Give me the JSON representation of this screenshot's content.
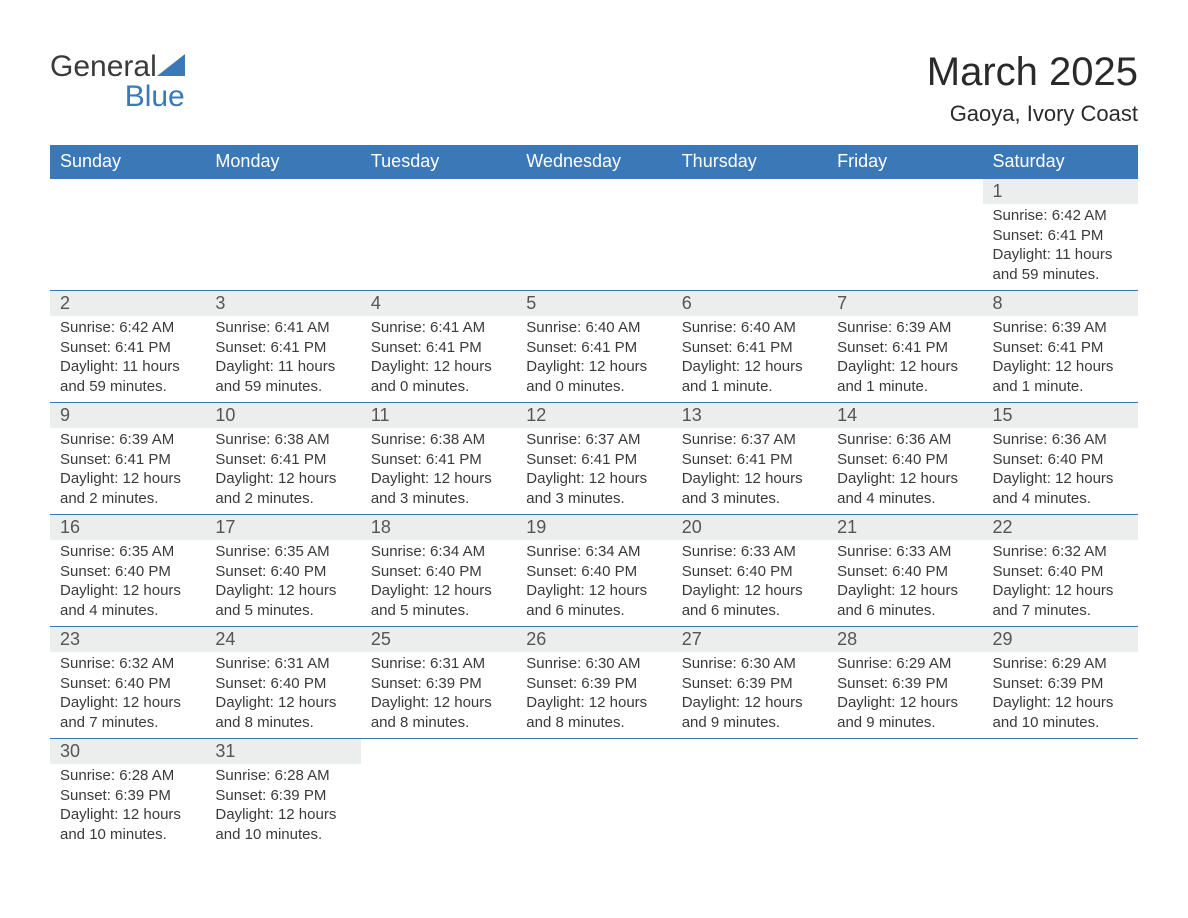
{
  "logo": {
    "text_general": "General",
    "text_blue": "Blue",
    "shape_color": "#3a78b8"
  },
  "title": "March 2025",
  "location": "Gaoya, Ivory Coast",
  "colors": {
    "header_bg": "#3a78b8",
    "header_text": "#ffffff",
    "daynum_bg": "#eceeee",
    "text": "#3a3a3a",
    "row_border": "#3a78b8",
    "page_bg": "#ffffff"
  },
  "day_headers": [
    "Sunday",
    "Monday",
    "Tuesday",
    "Wednesday",
    "Thursday",
    "Friday",
    "Saturday"
  ],
  "weeks": [
    [
      {
        "empty": true
      },
      {
        "empty": true
      },
      {
        "empty": true
      },
      {
        "empty": true
      },
      {
        "empty": true
      },
      {
        "empty": true
      },
      {
        "day": "1",
        "sunrise": "Sunrise: 6:42 AM",
        "sunset": "Sunset: 6:41 PM",
        "daylight": "Daylight: 11 hours and 59 minutes."
      }
    ],
    [
      {
        "day": "2",
        "sunrise": "Sunrise: 6:42 AM",
        "sunset": "Sunset: 6:41 PM",
        "daylight": "Daylight: 11 hours and 59 minutes."
      },
      {
        "day": "3",
        "sunrise": "Sunrise: 6:41 AM",
        "sunset": "Sunset: 6:41 PM",
        "daylight": "Daylight: 11 hours and 59 minutes."
      },
      {
        "day": "4",
        "sunrise": "Sunrise: 6:41 AM",
        "sunset": "Sunset: 6:41 PM",
        "daylight": "Daylight: 12 hours and 0 minutes."
      },
      {
        "day": "5",
        "sunrise": "Sunrise: 6:40 AM",
        "sunset": "Sunset: 6:41 PM",
        "daylight": "Daylight: 12 hours and 0 minutes."
      },
      {
        "day": "6",
        "sunrise": "Sunrise: 6:40 AM",
        "sunset": "Sunset: 6:41 PM",
        "daylight": "Daylight: 12 hours and 1 minute."
      },
      {
        "day": "7",
        "sunrise": "Sunrise: 6:39 AM",
        "sunset": "Sunset: 6:41 PM",
        "daylight": "Daylight: 12 hours and 1 minute."
      },
      {
        "day": "8",
        "sunrise": "Sunrise: 6:39 AM",
        "sunset": "Sunset: 6:41 PM",
        "daylight": "Daylight: 12 hours and 1 minute."
      }
    ],
    [
      {
        "day": "9",
        "sunrise": "Sunrise: 6:39 AM",
        "sunset": "Sunset: 6:41 PM",
        "daylight": "Daylight: 12 hours and 2 minutes."
      },
      {
        "day": "10",
        "sunrise": "Sunrise: 6:38 AM",
        "sunset": "Sunset: 6:41 PM",
        "daylight": "Daylight: 12 hours and 2 minutes."
      },
      {
        "day": "11",
        "sunrise": "Sunrise: 6:38 AM",
        "sunset": "Sunset: 6:41 PM",
        "daylight": "Daylight: 12 hours and 3 minutes."
      },
      {
        "day": "12",
        "sunrise": "Sunrise: 6:37 AM",
        "sunset": "Sunset: 6:41 PM",
        "daylight": "Daylight: 12 hours and 3 minutes."
      },
      {
        "day": "13",
        "sunrise": "Sunrise: 6:37 AM",
        "sunset": "Sunset: 6:41 PM",
        "daylight": "Daylight: 12 hours and 3 minutes."
      },
      {
        "day": "14",
        "sunrise": "Sunrise: 6:36 AM",
        "sunset": "Sunset: 6:40 PM",
        "daylight": "Daylight: 12 hours and 4 minutes."
      },
      {
        "day": "15",
        "sunrise": "Sunrise: 6:36 AM",
        "sunset": "Sunset: 6:40 PM",
        "daylight": "Daylight: 12 hours and 4 minutes."
      }
    ],
    [
      {
        "day": "16",
        "sunrise": "Sunrise: 6:35 AM",
        "sunset": "Sunset: 6:40 PM",
        "daylight": "Daylight: 12 hours and 4 minutes."
      },
      {
        "day": "17",
        "sunrise": "Sunrise: 6:35 AM",
        "sunset": "Sunset: 6:40 PM",
        "daylight": "Daylight: 12 hours and 5 minutes."
      },
      {
        "day": "18",
        "sunrise": "Sunrise: 6:34 AM",
        "sunset": "Sunset: 6:40 PM",
        "daylight": "Daylight: 12 hours and 5 minutes."
      },
      {
        "day": "19",
        "sunrise": "Sunrise: 6:34 AM",
        "sunset": "Sunset: 6:40 PM",
        "daylight": "Daylight: 12 hours and 6 minutes."
      },
      {
        "day": "20",
        "sunrise": "Sunrise: 6:33 AM",
        "sunset": "Sunset: 6:40 PM",
        "daylight": "Daylight: 12 hours and 6 minutes."
      },
      {
        "day": "21",
        "sunrise": "Sunrise: 6:33 AM",
        "sunset": "Sunset: 6:40 PM",
        "daylight": "Daylight: 12 hours and 6 minutes."
      },
      {
        "day": "22",
        "sunrise": "Sunrise: 6:32 AM",
        "sunset": "Sunset: 6:40 PM",
        "daylight": "Daylight: 12 hours and 7 minutes."
      }
    ],
    [
      {
        "day": "23",
        "sunrise": "Sunrise: 6:32 AM",
        "sunset": "Sunset: 6:40 PM",
        "daylight": "Daylight: 12 hours and 7 minutes."
      },
      {
        "day": "24",
        "sunrise": "Sunrise: 6:31 AM",
        "sunset": "Sunset: 6:40 PM",
        "daylight": "Daylight: 12 hours and 8 minutes."
      },
      {
        "day": "25",
        "sunrise": "Sunrise: 6:31 AM",
        "sunset": "Sunset: 6:39 PM",
        "daylight": "Daylight: 12 hours and 8 minutes."
      },
      {
        "day": "26",
        "sunrise": "Sunrise: 6:30 AM",
        "sunset": "Sunset: 6:39 PM",
        "daylight": "Daylight: 12 hours and 8 minutes."
      },
      {
        "day": "27",
        "sunrise": "Sunrise: 6:30 AM",
        "sunset": "Sunset: 6:39 PM",
        "daylight": "Daylight: 12 hours and 9 minutes."
      },
      {
        "day": "28",
        "sunrise": "Sunrise: 6:29 AM",
        "sunset": "Sunset: 6:39 PM",
        "daylight": "Daylight: 12 hours and 9 minutes."
      },
      {
        "day": "29",
        "sunrise": "Sunrise: 6:29 AM",
        "sunset": "Sunset: 6:39 PM",
        "daylight": "Daylight: 12 hours and 10 minutes."
      }
    ],
    [
      {
        "day": "30",
        "sunrise": "Sunrise: 6:28 AM",
        "sunset": "Sunset: 6:39 PM",
        "daylight": "Daylight: 12 hours and 10 minutes."
      },
      {
        "day": "31",
        "sunrise": "Sunrise: 6:28 AM",
        "sunset": "Sunset: 6:39 PM",
        "daylight": "Daylight: 12 hours and 10 minutes."
      },
      {
        "empty": true
      },
      {
        "empty": true
      },
      {
        "empty": true
      },
      {
        "empty": true
      },
      {
        "empty": true
      }
    ]
  ]
}
